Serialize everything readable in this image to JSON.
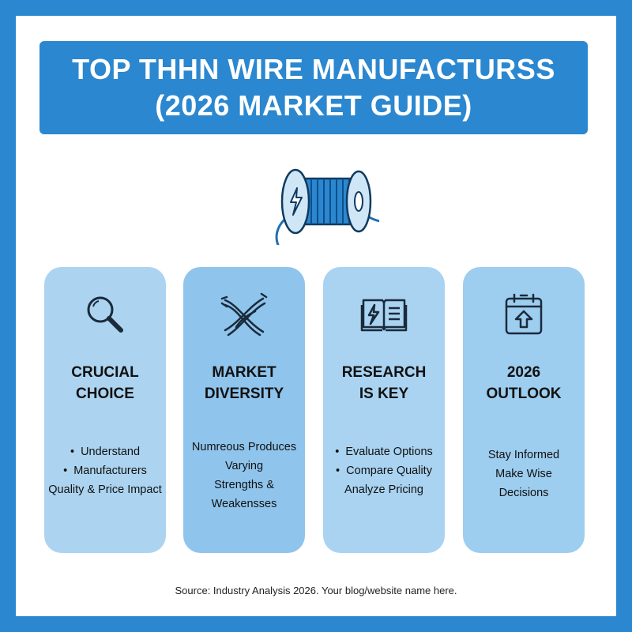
{
  "title": {
    "line1": "TOP THHN WIRE MANUFACTURSS",
    "line2": "(2026 MARKET GUIDE)"
  },
  "hero_icon": "wire-spool-lightning-icon",
  "cards": [
    {
      "icon": "magnifying-glass-icon",
      "heading_line1": "CRUCIAL",
      "heading_line2": "CHOICE",
      "bullets": [
        "Understand",
        "Manufacturers"
      ],
      "extra": "Quality & Price Impact"
    },
    {
      "icon": "tangled-wires-icon",
      "heading_line1": "MARKET",
      "heading_line2": "DIVERSITY",
      "lines": [
        "Numreous Produces",
        "Varying",
        "Strengths &",
        "Weakensses"
      ]
    },
    {
      "icon": "open-book-lightning-icon",
      "heading_line1": "RESEARCH",
      "heading_line2": "IS KEY",
      "bullets": [
        "Evaluate Options",
        "Compare Quality"
      ],
      "extra": "Analyze Pricing"
    },
    {
      "icon": "calendar-upload-icon",
      "heading_line1": "2026",
      "heading_line2": "OUTLOOK",
      "lines": [
        "Stay Informed",
        "Make Wise",
        "Decisions"
      ]
    }
  ],
  "footer": "Source: Industry Analysis 2026. Your blog/website name here.",
  "colors": {
    "brand_blue": "#2b87cf",
    "card_light": "#acd4f0",
    "card_mid": "#8fc4ec"
  }
}
